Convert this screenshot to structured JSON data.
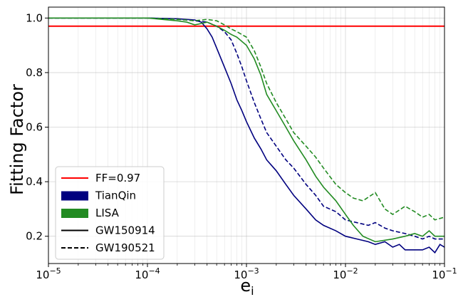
{
  "chart_data": {
    "type": "line",
    "xlabel": "e",
    "xlabel_sub": "i",
    "ylabel": "Fitting Factor",
    "xscale": "log",
    "xlim": [
      1e-05,
      0.1
    ],
    "ylim": [
      0.1,
      1.04
    ],
    "x_ticks": [
      1e-05,
      0.0001,
      0.001,
      0.01,
      0.1
    ],
    "x_tick_labels": [
      {
        "base": "10",
        "exp": "−5"
      },
      {
        "base": "10",
        "exp": "−4"
      },
      {
        "base": "10",
        "exp": "−3"
      },
      {
        "base": "10",
        "exp": "−2"
      },
      {
        "base": "10",
        "exp": "−1"
      }
    ],
    "y_ticks": [
      0.2,
      0.4,
      0.6,
      0.8,
      1.0
    ],
    "y_tick_labels": [
      "0.2",
      "0.4",
      "0.6",
      "0.8",
      "1.0"
    ],
    "grid": true,
    "legend_position": "lower-left",
    "threshold": {
      "label": "FF=0.97",
      "value": 0.97,
      "color": "#ff0000"
    },
    "legend": [
      {
        "label": "FF=0.97",
        "kind": "line",
        "color": "#ff0000",
        "dash": "solid"
      },
      {
        "label": "TianQin",
        "kind": "patch",
        "color": "#00007f"
      },
      {
        "label": "LISA",
        "kind": "patch",
        "color": "#228b22"
      },
      {
        "label": "GW150914",
        "kind": "line",
        "color": "#000000",
        "dash": "solid"
      },
      {
        "label": "GW190521",
        "kind": "line",
        "color": "#000000",
        "dash": "dashed"
      }
    ],
    "series": [
      {
        "detector": "TianQin",
        "event": "GW150914",
        "color": "#00007f",
        "dash": "solid",
        "points": [
          [
            1e-05,
            1.0
          ],
          [
            0.0001,
            1.0
          ],
          [
            0.0002,
            0.997
          ],
          [
            0.0003,
            0.993
          ],
          [
            0.00035,
            0.985
          ],
          [
            0.0004,
            0.96
          ],
          [
            0.00045,
            0.93
          ],
          [
            0.0005,
            0.89
          ],
          [
            0.0006,
            0.82
          ],
          [
            0.0007,
            0.76
          ],
          [
            0.0008,
            0.7
          ],
          [
            0.0009,
            0.66
          ],
          [
            0.001,
            0.62
          ],
          [
            0.0012,
            0.56
          ],
          [
            0.0014,
            0.52
          ],
          [
            0.0016,
            0.48
          ],
          [
            0.002,
            0.44
          ],
          [
            0.0025,
            0.39
          ],
          [
            0.003,
            0.35
          ],
          [
            0.004,
            0.3
          ],
          [
            0.005,
            0.26
          ],
          [
            0.006,
            0.24
          ],
          [
            0.008,
            0.22
          ],
          [
            0.01,
            0.2
          ],
          [
            0.013,
            0.19
          ],
          [
            0.017,
            0.18
          ],
          [
            0.02,
            0.17
          ],
          [
            0.025,
            0.18
          ],
          [
            0.03,
            0.16
          ],
          [
            0.035,
            0.17
          ],
          [
            0.04,
            0.15
          ],
          [
            0.05,
            0.15
          ],
          [
            0.06,
            0.15
          ],
          [
            0.07,
            0.16
          ],
          [
            0.08,
            0.14
          ],
          [
            0.09,
            0.17
          ],
          [
            0.1,
            0.16
          ]
        ]
      },
      {
        "detector": "TianQin",
        "event": "GW190521",
        "color": "#00007f",
        "dash": "dashed",
        "points": [
          [
            1e-05,
            1.0
          ],
          [
            0.0001,
            1.0
          ],
          [
            0.0002,
            0.997
          ],
          [
            0.0003,
            0.99
          ],
          [
            0.0004,
            0.985
          ],
          [
            0.0005,
            0.97
          ],
          [
            0.0006,
            0.95
          ],
          [
            0.0007,
            0.92
          ],
          [
            0.0008,
            0.87
          ],
          [
            0.0009,
            0.82
          ],
          [
            0.001,
            0.77
          ],
          [
            0.0012,
            0.69
          ],
          [
            0.0014,
            0.63
          ],
          [
            0.0016,
            0.58
          ],
          [
            0.002,
            0.53
          ],
          [
            0.0025,
            0.48
          ],
          [
            0.003,
            0.45
          ],
          [
            0.004,
            0.39
          ],
          [
            0.005,
            0.35
          ],
          [
            0.006,
            0.31
          ],
          [
            0.008,
            0.29
          ],
          [
            0.01,
            0.26
          ],
          [
            0.013,
            0.25
          ],
          [
            0.017,
            0.24
          ],
          [
            0.02,
            0.25
          ],
          [
            0.025,
            0.23
          ],
          [
            0.03,
            0.22
          ],
          [
            0.04,
            0.21
          ],
          [
            0.05,
            0.2
          ],
          [
            0.06,
            0.19
          ],
          [
            0.07,
            0.2
          ],
          [
            0.08,
            0.19
          ],
          [
            0.1,
            0.19
          ]
        ]
      },
      {
        "detector": "LISA",
        "event": "GW150914",
        "color": "#228b22",
        "dash": "solid",
        "points": [
          [
            1e-05,
            1.0
          ],
          [
            0.0001,
            1.0
          ],
          [
            0.0002,
            0.99
          ],
          [
            0.00025,
            0.985
          ],
          [
            0.0003,
            0.975
          ],
          [
            0.00035,
            0.98
          ],
          [
            0.0004,
            0.985
          ],
          [
            0.0005,
            0.97
          ],
          [
            0.0006,
            0.955
          ],
          [
            0.0007,
            0.94
          ],
          [
            0.0008,
            0.93
          ],
          [
            0.001,
            0.9
          ],
          [
            0.0012,
            0.85
          ],
          [
            0.0014,
            0.79
          ],
          [
            0.0016,
            0.72
          ],
          [
            0.002,
            0.66
          ],
          [
            0.0025,
            0.6
          ],
          [
            0.003,
            0.55
          ],
          [
            0.004,
            0.48
          ],
          [
            0.005,
            0.42
          ],
          [
            0.006,
            0.38
          ],
          [
            0.008,
            0.33
          ],
          [
            0.01,
            0.28
          ],
          [
            0.012,
            0.24
          ],
          [
            0.015,
            0.2
          ],
          [
            0.02,
            0.18
          ],
          [
            0.03,
            0.19
          ],
          [
            0.04,
            0.2
          ],
          [
            0.05,
            0.21
          ],
          [
            0.06,
            0.2
          ],
          [
            0.07,
            0.22
          ],
          [
            0.08,
            0.2
          ],
          [
            0.1,
            0.2
          ]
        ]
      },
      {
        "detector": "LISA",
        "event": "GW190521",
        "color": "#228b22",
        "dash": "dashed",
        "points": [
          [
            1e-05,
            1.0
          ],
          [
            0.0001,
            1.0
          ],
          [
            0.0002,
            0.995
          ],
          [
            0.0003,
            0.99
          ],
          [
            0.0004,
            0.995
          ],
          [
            0.0005,
            0.99
          ],
          [
            0.0006,
            0.975
          ],
          [
            0.0007,
            0.96
          ],
          [
            0.0008,
            0.95
          ],
          [
            0.001,
            0.93
          ],
          [
            0.0012,
            0.88
          ],
          [
            0.0014,
            0.82
          ],
          [
            0.0016,
            0.76
          ],
          [
            0.002,
            0.69
          ],
          [
            0.0025,
            0.63
          ],
          [
            0.003,
            0.58
          ],
          [
            0.004,
            0.53
          ],
          [
            0.005,
            0.49
          ],
          [
            0.006,
            0.45
          ],
          [
            0.008,
            0.39
          ],
          [
            0.01,
            0.36
          ],
          [
            0.012,
            0.34
          ],
          [
            0.015,
            0.33
          ],
          [
            0.02,
            0.36
          ],
          [
            0.025,
            0.3
          ],
          [
            0.03,
            0.28
          ],
          [
            0.04,
            0.31
          ],
          [
            0.05,
            0.29
          ],
          [
            0.06,
            0.27
          ],
          [
            0.07,
            0.28
          ],
          [
            0.08,
            0.26
          ],
          [
            0.1,
            0.27
          ]
        ]
      }
    ]
  }
}
